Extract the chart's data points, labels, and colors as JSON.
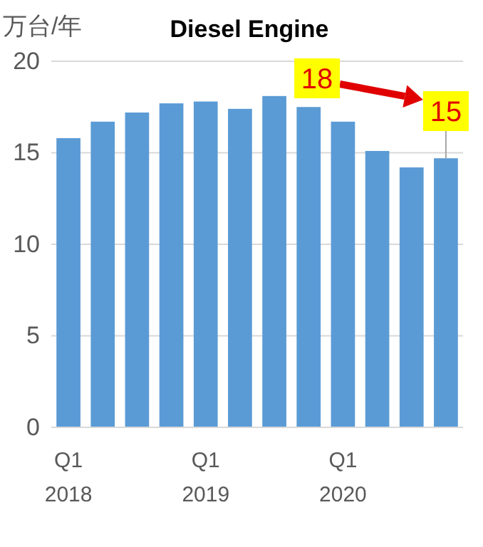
{
  "chart_data": {
    "type": "bar",
    "title": "Diesel Engine",
    "ylabel": "万台/年",
    "categories": [
      "Q1\n2018",
      null,
      null,
      null,
      "Q1\n2019",
      null,
      null,
      null,
      "Q1\n2020",
      null,
      null,
      null
    ],
    "values": [
      15.8,
      16.7,
      17.2,
      17.7,
      17.8,
      17.4,
      18.1,
      17.5,
      16.7,
      15.1,
      14.2,
      14.7
    ],
    "color": "#5b9bd5",
    "ylim": [
      0,
      20
    ],
    "yticks": [
      0,
      5,
      10,
      15,
      20
    ],
    "grid": "y",
    "annotations": [
      "18",
      "15"
    ]
  }
}
